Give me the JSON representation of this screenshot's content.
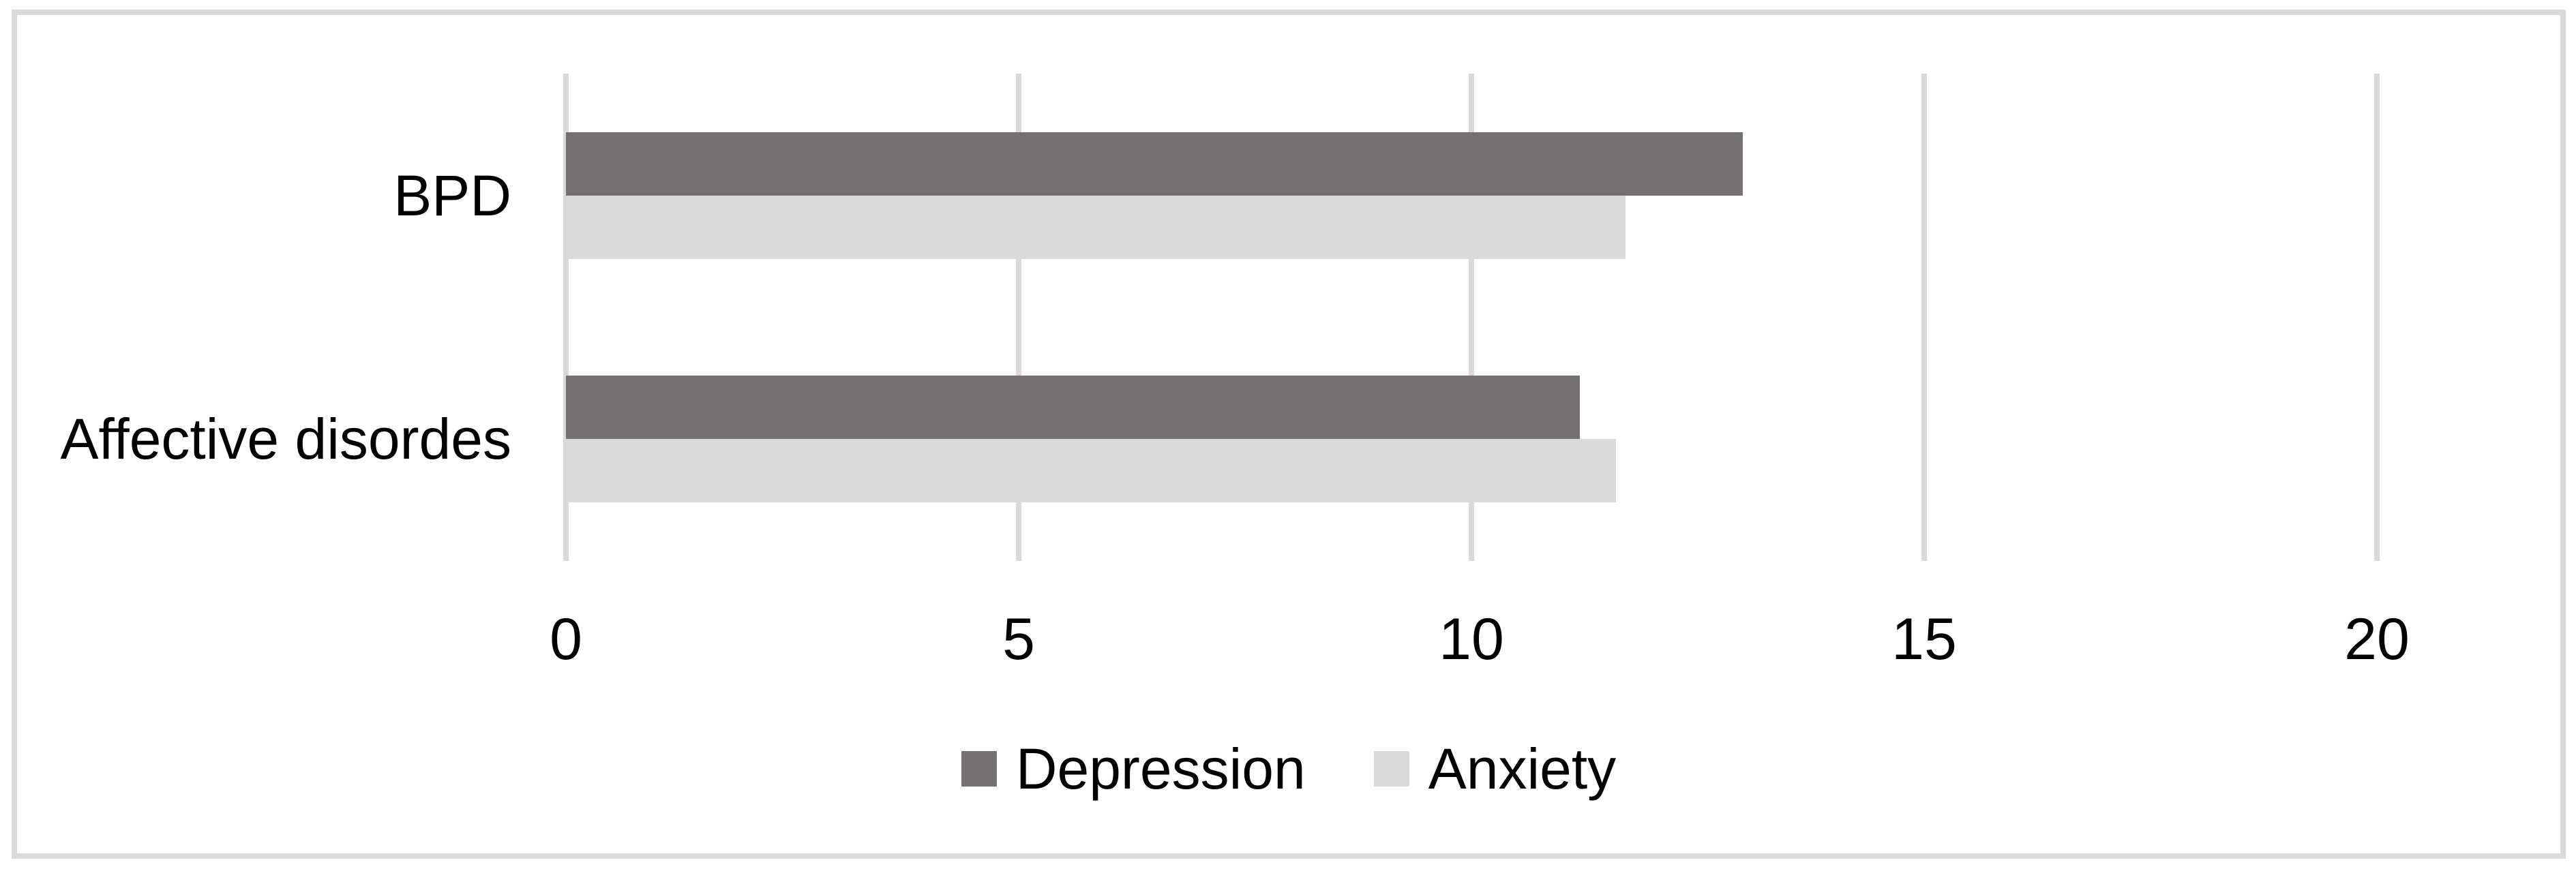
{
  "chart_data": {
    "type": "bar",
    "orientation": "horizontal",
    "title": "",
    "xlabel": "",
    "ylabel": "",
    "categories": [
      "BPD",
      "Affective disordes"
    ],
    "series": [
      {
        "name": "Depression",
        "color": "#767171",
        "values": [
          13.0,
          11.2
        ]
      },
      {
        "name": "Anxiety",
        "color": "#d9d9d9",
        "values": [
          11.7,
          11.6
        ]
      }
    ],
    "xlim": [
      0,
      20
    ],
    "x_ticks": [
      0,
      5,
      10,
      15,
      20
    ],
    "grid": true,
    "gridline_color": "#d9d9d9",
    "legend_position": "bottom"
  },
  "frame": {
    "border_color": "#d9d9d9",
    "background_color": "#ffffff",
    "text_color": "#000000"
  }
}
